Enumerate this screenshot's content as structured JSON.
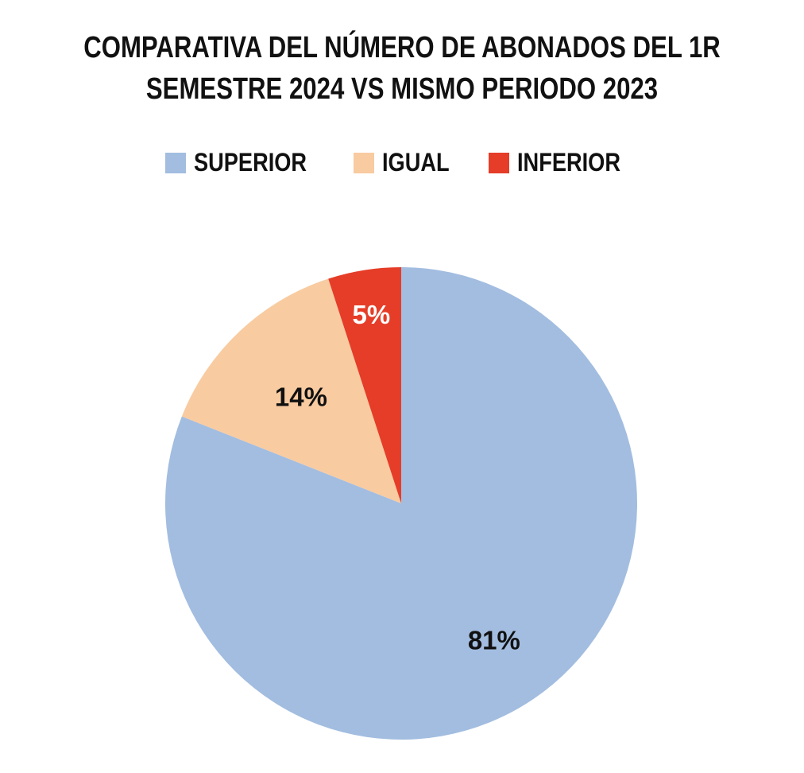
{
  "chart_data": {
    "type": "pie",
    "title": "COMPARATIVA DEL NÚMERO DE ABONADOS DEL 1R SEMESTRE 2024 VS MISMO PERIODO 2023",
    "title_lines": [
      "COMPARATIVA DEL NÚMERO DE ABONADOS DEL 1R",
      "SEMESTRE 2024 VS MISMO PERIODO 2023"
    ],
    "legend_position": "top",
    "categories": [
      "SUPERIOR",
      "IGUAL",
      "INFERIOR"
    ],
    "values": [
      81,
      14,
      5
    ],
    "data_labels": [
      "81%",
      "14%",
      "5%"
    ],
    "colors": [
      "#a2bde0",
      "#f8cba1",
      "#e53d28"
    ],
    "label_colors": [
      "#111111",
      "#111111",
      "#ffffff"
    ]
  },
  "legend": {
    "items": [
      {
        "label": "SUPERIOR",
        "color": "#a2bde0"
      },
      {
        "label": "IGUAL",
        "color": "#f8cba1"
      },
      {
        "label": "INFERIOR",
        "color": "#e53d28"
      }
    ]
  }
}
